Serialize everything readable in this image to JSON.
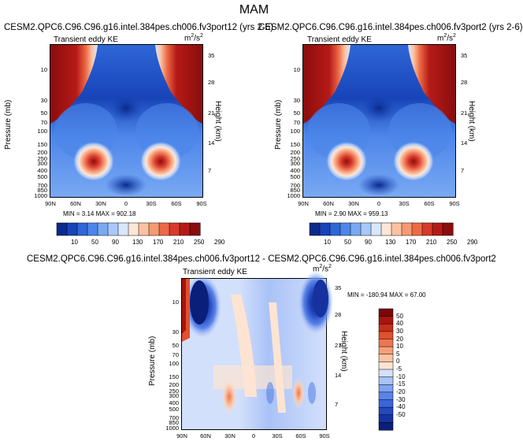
{
  "figure": {
    "title": "MAM",
    "colors": {
      "cbar_abs": [
        "#0a2a8c",
        "#1744b8",
        "#2f66d8",
        "#4d86ea",
        "#79a9f3",
        "#a8c8f9",
        "#d9e7fc",
        "#fde6d6",
        "#fbc2a2",
        "#f69a72",
        "#ec6a45",
        "#d8392a",
        "#b51a17",
        "#8a0d0d"
      ],
      "cbar_diff": [
        "#0a1f7a",
        "#16329e",
        "#2349c0",
        "#3b65d8",
        "#5a84e8",
        "#7fa3f1",
        "#a9c2f7",
        "#d3e0fb",
        "#fde4d2",
        "#fbc4a4",
        "#f6a078",
        "#ee7650",
        "#e0502f",
        "#c62e1c",
        "#a7150f",
        "#7c0707"
      ]
    }
  },
  "chart_data": [
    {
      "type": "heatmap",
      "title": "CESM2.QPC6.C96.C96.g16.intel.384pes.ch006.fv3port12 (yrs 2-6)",
      "subtitle": "Transient eddy KE",
      "units": "m²/s²",
      "units_base": "m",
      "units_sup": "2",
      "units_slash": "/s",
      "xlabel": "",
      "ylabel": "Pressure (mb)",
      "ylabel_right": "Height (km)",
      "x_ticks": [
        "90N",
        "60N",
        "30N",
        "0",
        "30S",
        "60S",
        "90S"
      ],
      "y_ticks": [
        "10",
        "30",
        "50",
        "70",
        "100",
        "150",
        "200",
        "250",
        "300",
        "400",
        "500",
        "700",
        "850",
        "1000"
      ],
      "y_ticks_right": [
        "35",
        "28",
        "21",
        "14",
        "7"
      ],
      "ylim": [
        1000,
        3
      ],
      "stats": "MIN =   3.14   MAX = 902.18",
      "min": 3.14,
      "max": 902.18,
      "colorbar_labels": [
        "10",
        "50",
        "90",
        "130",
        "170",
        "210",
        "250",
        "290"
      ],
      "features": [
        {
          "kind": "jet_maximum",
          "lat": 37,
          "pressure_mb": 250,
          "level": "high"
        },
        {
          "kind": "jet_maximum",
          "lat": -37,
          "pressure_mb": 250,
          "level": "high"
        },
        {
          "kind": "polar_upper_maximum",
          "lat": 75,
          "pressure_mb": 5,
          "level": "high"
        },
        {
          "kind": "polar_upper_maximum",
          "lat": -75,
          "pressure_mb": 5,
          "level": "high"
        }
      ]
    },
    {
      "type": "heatmap",
      "title": "CESM2.QPC6.C96.C96.g16.intel.384pes.ch006.fv3port2 (yrs 2-6)",
      "subtitle": "Transient eddy KE",
      "units": "m²/s²",
      "units_base": "m",
      "units_sup": "2",
      "units_slash": "/s",
      "xlabel": "",
      "ylabel": "Pressure (mb)",
      "ylabel_right": "Height (km)",
      "x_ticks": [
        "90N",
        "60N",
        "30N",
        "0",
        "30S",
        "60S",
        "90S"
      ],
      "y_ticks": [
        "10",
        "30",
        "50",
        "70",
        "100",
        "150",
        "200",
        "250",
        "300",
        "400",
        "500",
        "700",
        "850",
        "1000"
      ],
      "y_ticks_right": [
        "35",
        "28",
        "21",
        "14",
        "7"
      ],
      "ylim": [
        1000,
        3
      ],
      "stats": "MIN =   2.90   MAX = 959.13",
      "min": 2.9,
      "max": 959.13,
      "colorbar_labels": [
        "10",
        "50",
        "90",
        "130",
        "170",
        "210",
        "250",
        "290"
      ],
      "features": [
        {
          "kind": "jet_maximum",
          "lat": 37,
          "pressure_mb": 250,
          "level": "high"
        },
        {
          "kind": "jet_maximum",
          "lat": -37,
          "pressure_mb": 250,
          "level": "high"
        },
        {
          "kind": "polar_upper_maximum",
          "lat": 75,
          "pressure_mb": 5,
          "level": "high"
        },
        {
          "kind": "polar_upper_maximum",
          "lat": -75,
          "pressure_mb": 5,
          "level": "high"
        }
      ]
    },
    {
      "type": "heatmap",
      "title": "CESM2.QPC6.C96.C96.g16.intel.384pes.ch006.fv3port12 - CESM2.QPC6.C96.C96.g16.intel.384pes.ch006.fv3port2",
      "subtitle": "Transient eddy KE",
      "units": "m²/s²",
      "units_base": "m",
      "units_sup": "2",
      "units_slash": "/s",
      "xlabel": "",
      "ylabel": "Pressure (mb)",
      "ylabel_right": "Height (km)",
      "x_ticks": [
        "90N",
        "60N",
        "30N",
        "0",
        "30S",
        "60S",
        "90S"
      ],
      "y_ticks": [
        "10",
        "30",
        "50",
        "70",
        "100",
        "150",
        "200",
        "250",
        "300",
        "400",
        "500",
        "700",
        "850",
        "1000"
      ],
      "y_ticks_right": [
        "35",
        "28",
        "21",
        "14",
        "7"
      ],
      "ylim": [
        1000,
        3
      ],
      "stats": "MIN = -180.94   MAX =  67.00",
      "min": -180.94,
      "max": 67.0,
      "colorbar_labels": [
        "50",
        "40",
        "30",
        "20",
        "10",
        "5",
        "0",
        "-5",
        "-10",
        "-15",
        "-20",
        "-30",
        "-40",
        "-50"
      ],
      "features": [
        {
          "kind": "negative_anomaly",
          "lat": 75,
          "pressure_mb": 5,
          "level": "low"
        },
        {
          "kind": "negative_anomaly",
          "lat": -80,
          "pressure_mb": 5,
          "level": "low"
        },
        {
          "kind": "positive_anomaly",
          "lat": 88,
          "pressure_mb": 10,
          "level": "high"
        },
        {
          "kind": "positive_anomaly",
          "lat": 36,
          "pressure_mb": 300,
          "level": "weak"
        },
        {
          "kind": "positive_anomaly",
          "lat": -55,
          "pressure_mb": 300,
          "level": "weak"
        }
      ]
    }
  ]
}
